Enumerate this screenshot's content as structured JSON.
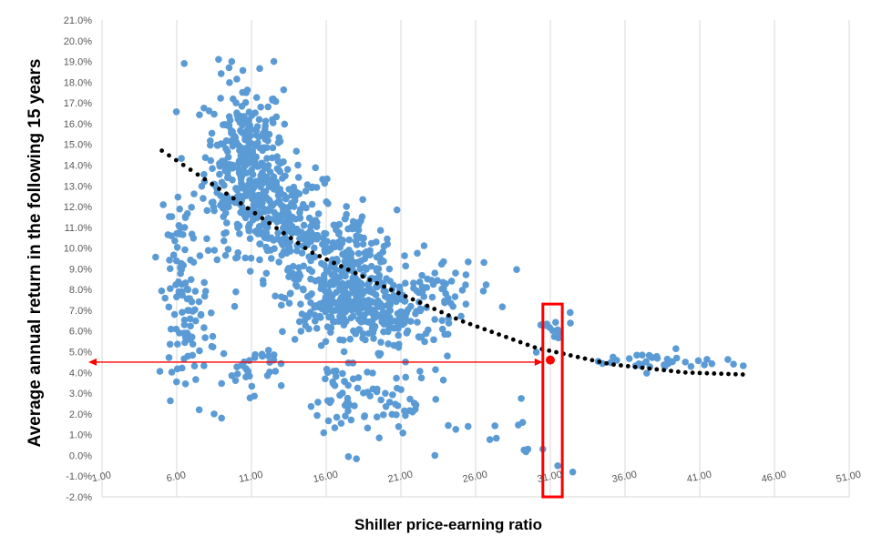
{
  "chart_data": {
    "type": "scatter",
    "xlabel": "Shiller price-earning ratio",
    "ylabel": "Average annual return in the following 15 years",
    "xlim": [
      1.0,
      51.0
    ],
    "ylim": [
      -2.0,
      21.0
    ],
    "x_ticks": [
      "1.00",
      "6.00",
      "11.00",
      "16.00",
      "21.00",
      "26.00",
      "31.00",
      "36.00",
      "41.00",
      "46.00",
      "51.00"
    ],
    "y_ticks": [
      "-2.0%",
      "-1.0%",
      "0.0%",
      "1.0%",
      "2.0%",
      "3.0%",
      "4.0%",
      "5.0%",
      "6.0%",
      "7.0%",
      "8.0%",
      "9.0%",
      "10.0%",
      "11.0%",
      "12.0%",
      "13.0%",
      "14.0%",
      "15.0%",
      "16.0%",
      "17.0%",
      "18.0%",
      "19.0%",
      "20.0%",
      "21.0%"
    ],
    "grid": "vertical",
    "trendline": {
      "style": "dotted",
      "color": "#000000",
      "points": [
        [
          5.0,
          14.7
        ],
        [
          10,
          12.3
        ],
        [
          15,
          9.8
        ],
        [
          20,
          8.1
        ],
        [
          25,
          6.5
        ],
        [
          30,
          5.2
        ],
        [
          35,
          4.4
        ],
        [
          40,
          4.0
        ],
        [
          44,
          3.9
        ]
      ]
    },
    "highlight": {
      "x": 31.0,
      "y": 4.6,
      "color": "#FF0000",
      "box_x": [
        30.5,
        31.8
      ],
      "box_y": [
        -2.0,
        7.3
      ],
      "arrow_y": 4.5
    },
    "series_color": "#5B9BD5",
    "clusters": [
      {
        "cx": 10.5,
        "cy": 14.5,
        "sx": 1.3,
        "sy": 1.8,
        "n": 240
      },
      {
        "cx": 11.5,
        "cy": 12.3,
        "sx": 1.5,
        "sy": 1.3,
        "n": 130
      },
      {
        "cx": 13.5,
        "cy": 11.0,
        "sx": 1.6,
        "sy": 1.5,
        "n": 100
      },
      {
        "cx": 17.5,
        "cy": 9.0,
        "sx": 1.6,
        "sy": 1.4,
        "n": 240
      },
      {
        "cx": 16.5,
        "cy": 7.3,
        "sx": 1.8,
        "sy": 0.9,
        "n": 130
      },
      {
        "cx": 20.5,
        "cy": 6.6,
        "sx": 1.6,
        "sy": 0.8,
        "n": 110
      },
      {
        "cx": 23.5,
        "cy": 8.0,
        "sx": 2.0,
        "sy": 0.8,
        "n": 50
      },
      {
        "cx": 14.0,
        "cy": 10.5,
        "sx": 1.1,
        "sy": 0.6,
        "n": 50
      },
      {
        "cx": 6.8,
        "cy": 6.3,
        "sx": 0.9,
        "sy": 1.3,
        "n": 70
      },
      {
        "cx": 6.5,
        "cy": 10.0,
        "sx": 0.8,
        "sy": 1.8,
        "n": 45
      },
      {
        "cx": 11.0,
        "cy": 4.2,
        "sx": 1.0,
        "sy": 0.6,
        "n": 30
      },
      {
        "cx": 17.5,
        "cy": 2.8,
        "sx": 1.4,
        "sy": 1.2,
        "n": 55
      },
      {
        "cx": 21.5,
        "cy": 2.5,
        "sx": 1.6,
        "sy": 1.0,
        "n": 35
      },
      {
        "cx": 27.5,
        "cy": 1.0,
        "sx": 1.8,
        "sy": 0.6,
        "n": 10
      },
      {
        "cx": 31.0,
        "cy": 5.8,
        "sx": 0.8,
        "sy": 0.6,
        "n": 14
      },
      {
        "cx": 38.5,
        "cy": 4.5,
        "sx": 3.0,
        "sy": 0.25,
        "n": 40
      }
    ],
    "extra_points": [
      [
        6.5,
        18.9
      ],
      [
        8.8,
        19.1
      ],
      [
        9.5,
        18.7
      ],
      [
        31.5,
        -0.5
      ],
      [
        32.5,
        -0.8
      ],
      [
        29.5,
        0.3
      ],
      [
        30.5,
        0.3
      ],
      [
        7.5,
        2.2
      ],
      [
        8.5,
        2.0
      ],
      [
        9.0,
        1.8
      ],
      [
        12.5,
        19.0
      ]
    ]
  }
}
